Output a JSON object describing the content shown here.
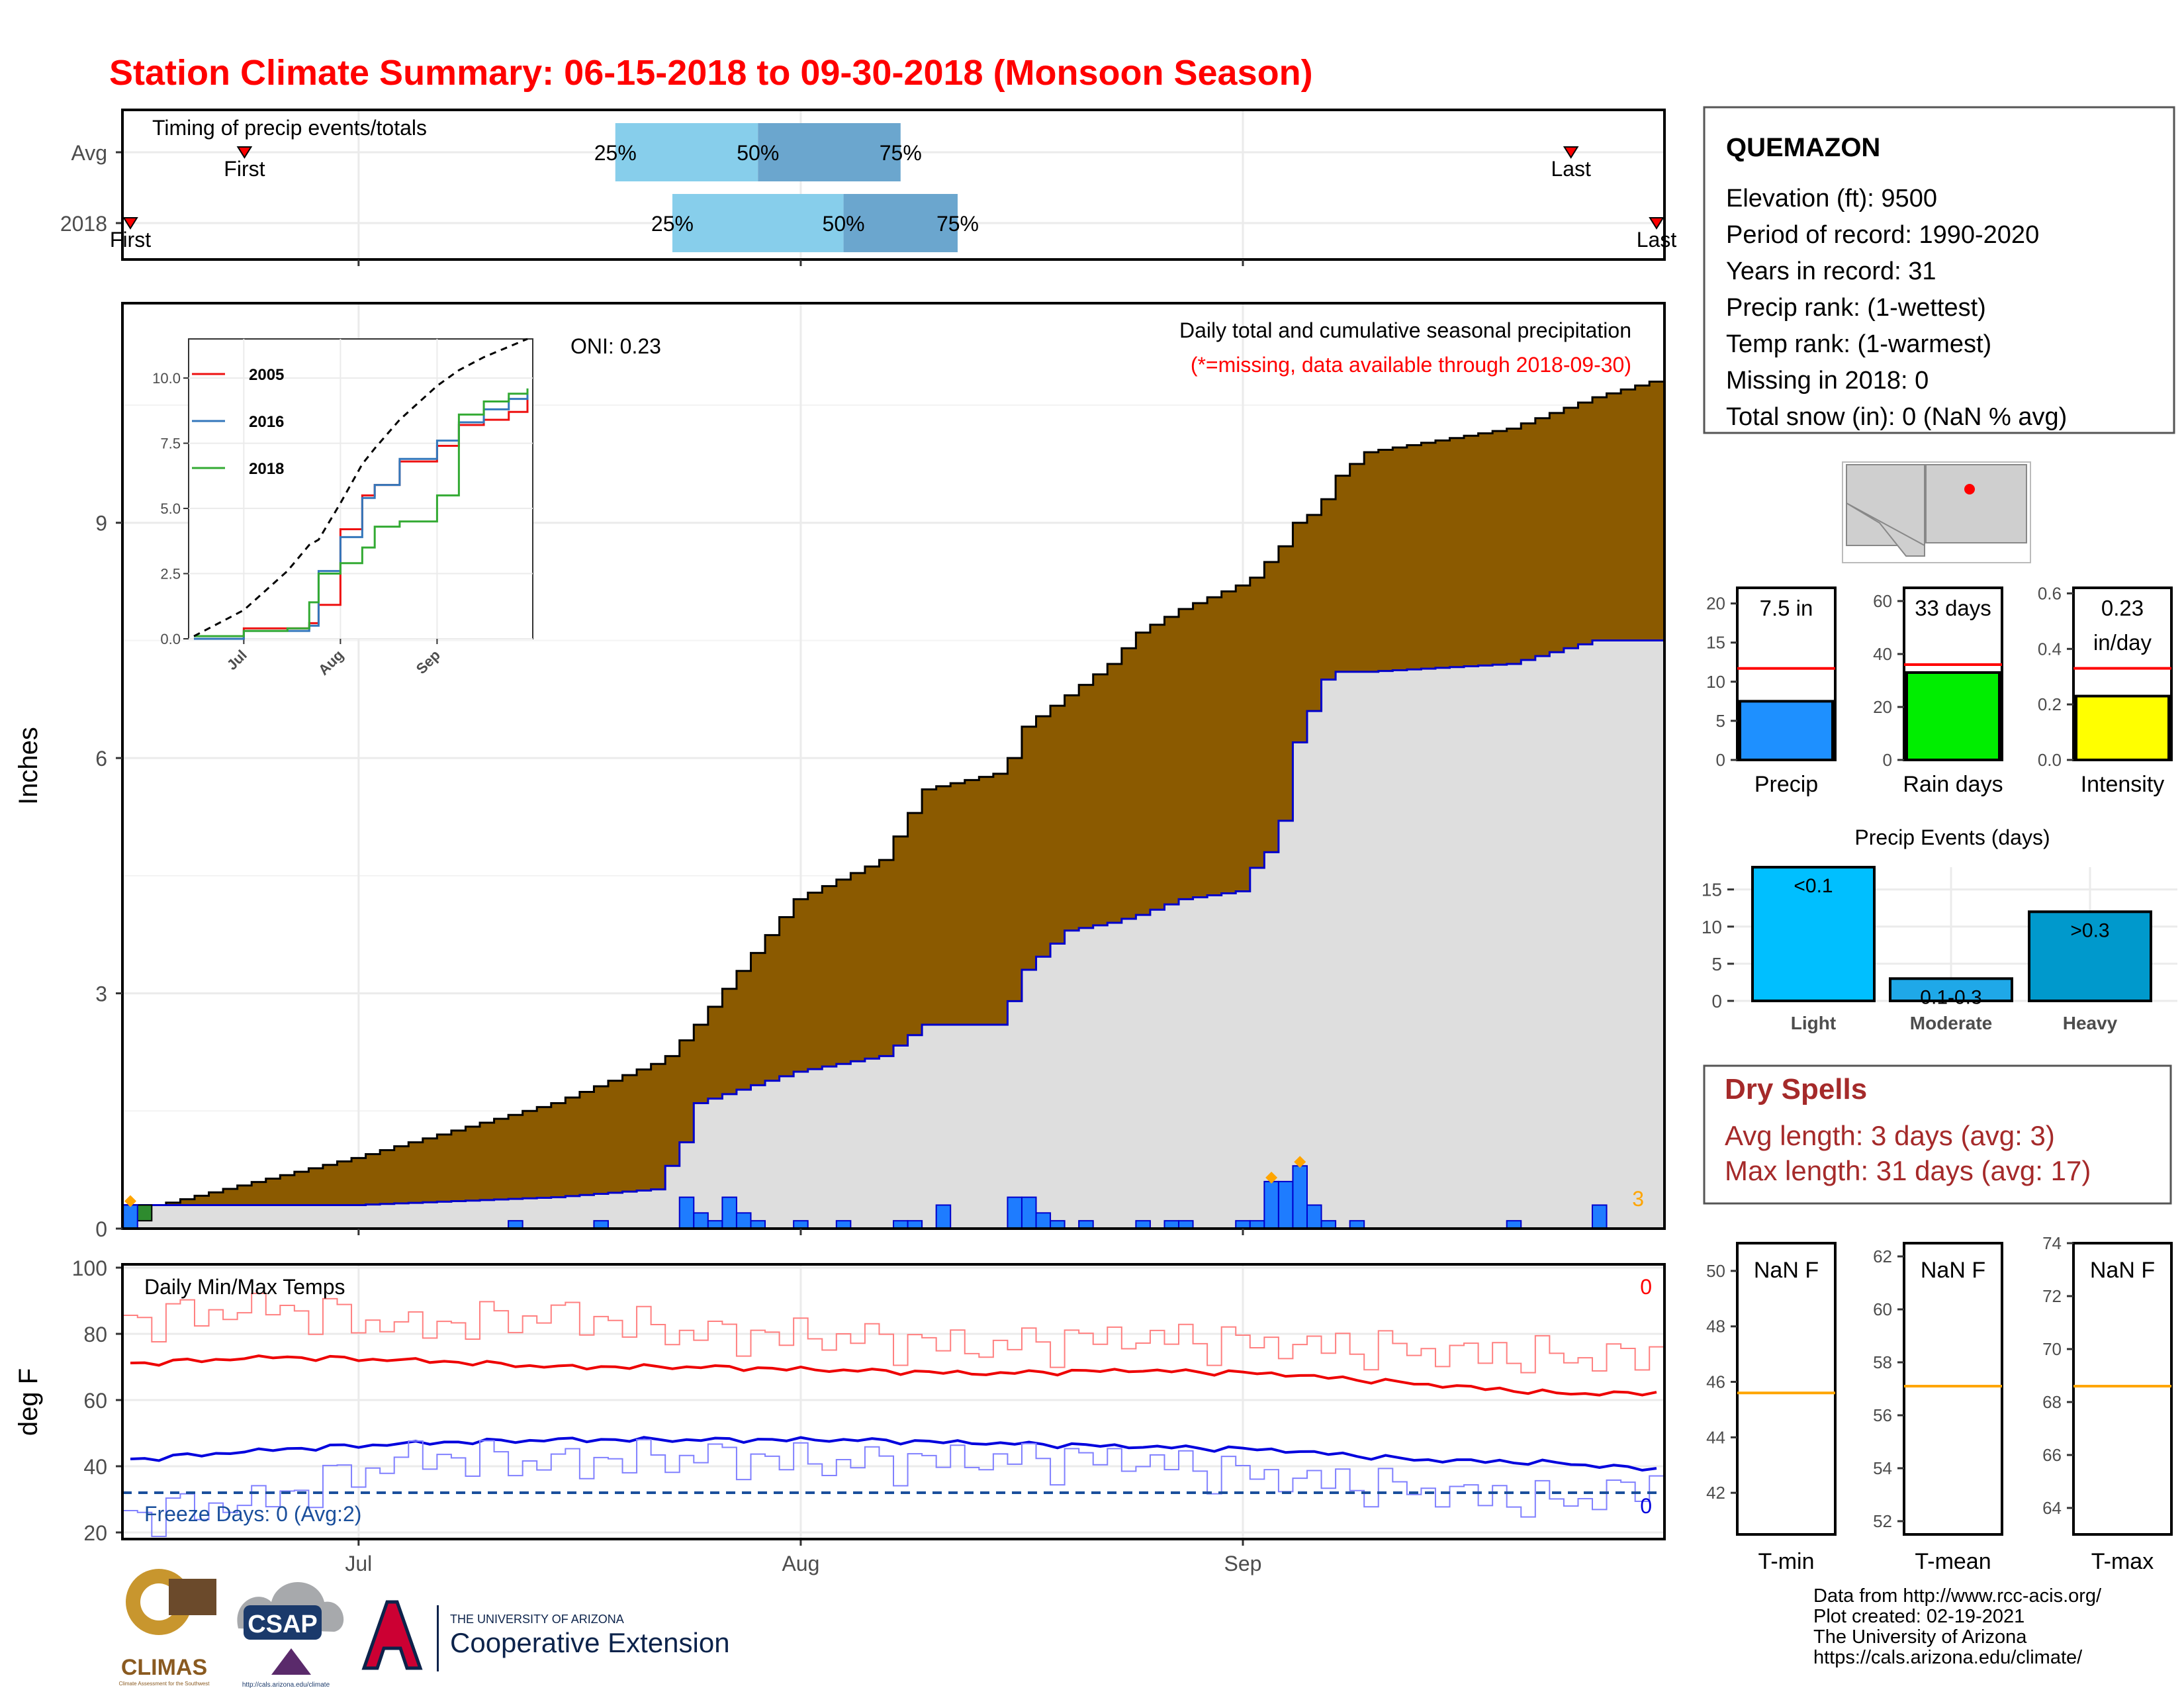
{
  "title": "Station Climate Summary: 06-15-2018 to 09-30-2018 (Monsoon Season)",
  "colors": {
    "title": "#ff0000",
    "dark_blue_bar": "#6ba6ce",
    "light_blue_bar": "#87ceeb",
    "cumulative_fill": "#8b5a00",
    "avg_fill": "#dedede",
    "daily_bar": "#1e7cff",
    "daily_bar_edge": "#0000cc",
    "avg_line": "#0000cc",
    "red_line": "#ff0000",
    "green": "#00ee00",
    "yellow": "#ffff00",
    "precip_bar": "#1e90ff",
    "events_light": "#00bfff",
    "events_moderate": "#1fa8e8",
    "events_heavy": "#0099cc",
    "dry_spell_text": "#a52a2a",
    "freeze_line": "#1a4f9c",
    "orange_line": "#ffa500",
    "marker": "#ffa500"
  },
  "timing": {
    "title": "Timing of precip events/totals",
    "rows": [
      {
        "label": "Avg",
        "first_label": "First",
        "last_label": "Last",
        "first": "2018-06-23",
        "last": "2018-09-24",
        "q25": "2018-07-19",
        "q50": "2018-07-29",
        "q75": "2018-08-08",
        "q25_label": "25%",
        "q50_label": "50%",
        "q75_label": "75%"
      },
      {
        "label": "2018",
        "first_label": "First",
        "last_label": "Last",
        "first": "2018-06-15",
        "last": "2018-09-30",
        "q25": "2018-07-23",
        "q50": "2018-08-04",
        "q75": "2018-08-12",
        "q25_label": "25%",
        "q50_label": "50%",
        "q75_label": "75%"
      }
    ]
  },
  "main": {
    "ylabel": "Inches",
    "yticks": [
      0,
      3,
      6,
      9
    ],
    "oni": "ONI: 0.23",
    "caption": "Daily total and cumulative seasonal precipitation",
    "missing_note": "(*=missing, data available through 2018-09-30)",
    "missing_count": "3",
    "xticks": [
      {
        "label": "Jul",
        "date": "2018-07-01"
      },
      {
        "label": "Aug",
        "date": "2018-08-01"
      },
      {
        "label": "Sep",
        "date": "2018-09-01"
      }
    ]
  },
  "inset": {
    "yticks": [
      "0.0",
      "2.5",
      "5.0",
      "7.5",
      "10.0"
    ],
    "xticks": [
      "Jul",
      "Aug",
      "Sep"
    ],
    "legend": [
      {
        "name": "2005",
        "color": "#ee1111"
      },
      {
        "name": "2016",
        "color": "#3377bb"
      },
      {
        "name": "2018",
        "color": "#33aa33"
      }
    ]
  },
  "temps": {
    "title": "Daily Min/Max Temps",
    "ylabel": "deg F",
    "yticks": [
      20,
      40,
      60,
      80,
      100
    ],
    "freeze": "Freeze Days: 0 (Avg:2)",
    "max_missing": "0",
    "min_missing": "0",
    "xticks": [
      "Jul",
      "Aug",
      "Sep"
    ]
  },
  "station": {
    "name": "QUEMAZON",
    "lines": [
      "Elevation (ft): 9500",
      "Period of record: 1990-2020",
      "Years in record: 31",
      "Precip rank:  (1-wettest)",
      "Temp rank:  (1-warmest)",
      "Missing in 2018: 0",
      "Total snow (in): 0 (NaN % avg)"
    ]
  },
  "mini_bars": [
    {
      "label": "Precip",
      "value": 7.5,
      "avg": 11.7,
      "ymax": 22,
      "yticks": [
        "0",
        "5",
        "10",
        "15",
        "20"
      ],
      "tick_vals": [
        0,
        5,
        10,
        15,
        20
      ],
      "box_lines": [
        "7.5 in"
      ],
      "color": "#1e90ff"
    },
    {
      "label": "Rain days",
      "value": 33,
      "avg": 36,
      "ymax": 65,
      "yticks": [
        "0",
        "20",
        "40",
        "60"
      ],
      "tick_vals": [
        0,
        20,
        40,
        60
      ],
      "box_lines": [
        "33 days"
      ],
      "color": "#00ee00"
    },
    {
      "label": "Intensity",
      "value": 0.23,
      "avg": 0.33,
      "ymax": 0.62,
      "yticks": [
        "0.0",
        "0.2",
        "0.4",
        "0.6"
      ],
      "tick_vals": [
        0,
        0.2,
        0.4,
        0.6
      ],
      "box_lines": [
        "0.23",
        "in/day"
      ],
      "color": "#ffff00"
    }
  ],
  "events": {
    "title": "Precip Events (days)",
    "yticks": [
      0,
      5,
      10,
      15
    ],
    "bars": [
      {
        "category": "Light",
        "value": 18,
        "label": "<0.1"
      },
      {
        "category": "Moderate",
        "value": 3,
        "label": "0.1-0.3"
      },
      {
        "category": "Heavy",
        "value": 12,
        "label": ">0.3"
      }
    ]
  },
  "dry_spells": {
    "title": "Dry Spells",
    "avg": "Avg length: 3 days (avg: 3)",
    "max": "Max length: 31 days (avg: 17)"
  },
  "temp_boxes": [
    {
      "label": "T-min",
      "text": "NaN F",
      "avg": 45.6,
      "ylim": [
        40.5,
        51
      ],
      "yticks": [
        42,
        44,
        46,
        48,
        50
      ]
    },
    {
      "label": "T-mean",
      "text": "NaN F",
      "avg": 57.1,
      "ylim": [
        51.5,
        62.5
      ],
      "yticks": [
        52,
        54,
        56,
        58,
        60,
        62
      ]
    },
    {
      "label": "T-max",
      "text": "NaN F",
      "avg": 68.6,
      "ylim": [
        63,
        74
      ],
      "yticks": [
        64,
        66,
        68,
        70,
        72,
        74
      ]
    }
  ],
  "logos": {
    "climas": "CLIMAS",
    "climas_sub": "Climate Assessment for the Southwest",
    "csap": "CSAP",
    "csap_url": "http://cals.arizona.edu/climate",
    "ua_line1": "THE UNIVERSITY OF ARIZONA",
    "ua_line2": "Cooperative Extension"
  },
  "credits": [
    "Data from http://www.rcc-acis.org/",
    "Plot created: 02-19-2021",
    "The University of Arizona",
    "https://cals.arizona.edu/climate/"
  ],
  "chart_data": [
    {
      "type": "bar",
      "title": "Timing of precip events/totals",
      "categories": [
        "Avg",
        "2018"
      ],
      "series": [
        {
          "name": "25%",
          "values": [
            "2018-07-19",
            "2018-07-23"
          ]
        },
        {
          "name": "50%",
          "values": [
            "2018-07-29",
            "2018-08-04"
          ]
        },
        {
          "name": "75%",
          "values": [
            "2018-08-08",
            "2018-08-12"
          ]
        }
      ]
    },
    {
      "type": "area",
      "title": "Daily total and cumulative seasonal precipitation",
      "ylabel": "Inches",
      "ylim": [
        0,
        11.8
      ],
      "x": [
        "2018-06-15",
        "2018-07-01",
        "2018-07-15",
        "2018-07-22",
        "2018-07-23",
        "2018-07-24",
        "2018-07-25",
        "2018-08-01",
        "2018-08-07",
        "2018-08-10",
        "2018-08-15",
        "2018-08-16",
        "2018-08-17",
        "2018-08-20",
        "2018-08-23",
        "2018-08-25",
        "2018-08-28",
        "2018-09-01",
        "2018-09-02",
        "2018-09-03",
        "2018-09-04",
        "2018-09-05",
        "2018-09-06",
        "2018-09-07",
        "2018-09-08",
        "2018-09-10",
        "2018-09-20",
        "2018-09-26",
        "2018-09-30"
      ],
      "series": [
        {
          "name": "2018",
          "values": [
            0.3,
            0.3,
            0.4,
            0.5,
            0.8,
            1.1,
            1.6,
            2.0,
            2.2,
            2.6,
            2.6,
            2.9,
            3.3,
            3.8,
            3.9,
            4.0,
            4.2,
            4.3,
            4.6,
            4.8,
            5.2,
            6.2,
            6.6,
            7.0,
            7.1,
            7.1,
            7.2,
            7.5,
            7.5
          ]
        },
        {
          "name": "Avg",
          "values": [
            0.2,
            0.9,
            1.6,
            2.1,
            2.2,
            2.4,
            2.6,
            4.2,
            4.7,
            5.6,
            5.8,
            6.0,
            6.4,
            6.8,
            7.2,
            7.6,
            7.9,
            8.2,
            8.3,
            8.5,
            8.7,
            9.0,
            9.1,
            9.3,
            9.6,
            9.9,
            10.2,
            10.6,
            10.8
          ]
        }
      ],
      "daily_precip": [
        {
          "date": "2018-06-15",
          "value": 0.3
        },
        {
          "date": "2018-07-12",
          "value": 0.1
        },
        {
          "date": "2018-07-18",
          "value": 0.1
        },
        {
          "date": "2018-07-24",
          "value": 0.4
        },
        {
          "date": "2018-07-25",
          "value": 0.2
        },
        {
          "date": "2018-07-26",
          "value": 0.1
        },
        {
          "date": "2018-07-27",
          "value": 0.4
        },
        {
          "date": "2018-07-28",
          "value": 0.2
        },
        {
          "date": "2018-07-29",
          "value": 0.1
        },
        {
          "date": "2018-08-01",
          "value": 0.1
        },
        {
          "date": "2018-08-04",
          "value": 0.1
        },
        {
          "date": "2018-08-08",
          "value": 0.1
        },
        {
          "date": "2018-08-09",
          "value": 0.1
        },
        {
          "date": "2018-08-11",
          "value": 0.3
        },
        {
          "date": "2018-08-16",
          "value": 0.4
        },
        {
          "date": "2018-08-17",
          "value": 0.4
        },
        {
          "date": "2018-08-18",
          "value": 0.2
        },
        {
          "date": "2018-08-19",
          "value": 0.1
        },
        {
          "date": "2018-08-21",
          "value": 0.1
        },
        {
          "date": "2018-08-25",
          "value": 0.1
        },
        {
          "date": "2018-08-27",
          "value": 0.1
        },
        {
          "date": "2018-08-28",
          "value": 0.1
        },
        {
          "date": "2018-09-01",
          "value": 0.1
        },
        {
          "date": "2018-09-02",
          "value": 0.1
        },
        {
          "date": "2018-09-03",
          "value": 0.6
        },
        {
          "date": "2018-09-04",
          "value": 0.6
        },
        {
          "date": "2018-09-05",
          "value": 0.8
        },
        {
          "date": "2018-09-06",
          "value": 0.3
        },
        {
          "date": "2018-09-07",
          "value": 0.1
        },
        {
          "date": "2018-09-09",
          "value": 0.1
        },
        {
          "date": "2018-09-20",
          "value": 0.1
        },
        {
          "date": "2018-09-26",
          "value": 0.3
        }
      ]
    },
    {
      "type": "line",
      "title": "",
      "xticks": [
        "Jul",
        "Aug",
        "Sep"
      ],
      "ylim": [
        0,
        11.5
      ],
      "x": [
        "2018-06-15",
        "2018-07-01",
        "2018-07-15",
        "2018-07-22",
        "2018-07-25",
        "2018-08-01",
        "2018-08-08",
        "2018-08-12",
        "2018-08-20",
        "2018-09-01",
        "2018-09-08",
        "2018-09-16",
        "2018-09-24",
        "2018-09-30"
      ],
      "series": [
        {
          "name": "2005",
          "values": [
            0.0,
            0.4,
            0.4,
            0.6,
            1.3,
            4.2,
            5.5,
            5.9,
            6.8,
            7.4,
            8.2,
            8.4,
            8.7,
            9.5
          ]
        },
        {
          "name": "2016",
          "values": [
            0.0,
            0.3,
            0.3,
            0.5,
            2.6,
            3.9,
            5.4,
            5.9,
            6.9,
            7.6,
            8.3,
            8.8,
            9.2,
            9.6
          ]
        },
        {
          "name": "2018",
          "values": [
            0.1,
            0.3,
            0.4,
            1.4,
            2.5,
            2.9,
            3.5,
            4.3,
            4.5,
            5.5,
            8.6,
            9.1,
            9.4,
            9.6
          ]
        },
        {
          "name": "",
          "values": [
            0.1,
            1.1,
            2.6,
            3.6,
            3.8,
            5.2,
            6.7,
            7.3,
            8.4,
            9.7,
            10.3,
            10.8,
            11.2,
            11.5
          ]
        }
      ]
    },
    {
      "type": "line",
      "title": "Daily Min/Max Temps",
      "ylabel": "deg F",
      "ylim": [
        18,
        101
      ],
      "x": [
        "2018-06-15",
        "2018-06-25",
        "2018-07-05",
        "2018-07-15",
        "2018-07-25",
        "2018-08-04",
        "2018-08-14",
        "2018-08-24",
        "2018-09-03",
        "2018-09-13",
        "2018-09-23",
        "2018-09-30"
      ],
      "series": [
        {
          "name": "Daily Max",
          "values": [
            84,
            88,
            82,
            86,
            80,
            79,
            76,
            79,
            77,
            75,
            73,
            73
          ]
        },
        {
          "name": "Avg Max",
          "values": [
            71,
            73,
            72,
            70,
            70,
            69,
            68,
            69,
            68,
            65,
            62,
            62
          ]
        },
        {
          "name": "Avg Min",
          "values": [
            42,
            45,
            47,
            48,
            48,
            48,
            47,
            46,
            45,
            42,
            41,
            39
          ]
        },
        {
          "name": "Daily Min",
          "values": [
            25,
            30,
            43,
            41,
            43,
            41,
            42,
            42,
            37,
            33,
            29,
            34
          ]
        }
      ]
    },
    {
      "type": "bar",
      "title": "Precip Events (days)",
      "categories": [
        "Light",
        "Moderate",
        "Heavy"
      ],
      "values": [
        18,
        3,
        12
      ],
      "ylim": [
        0,
        18
      ]
    }
  ]
}
